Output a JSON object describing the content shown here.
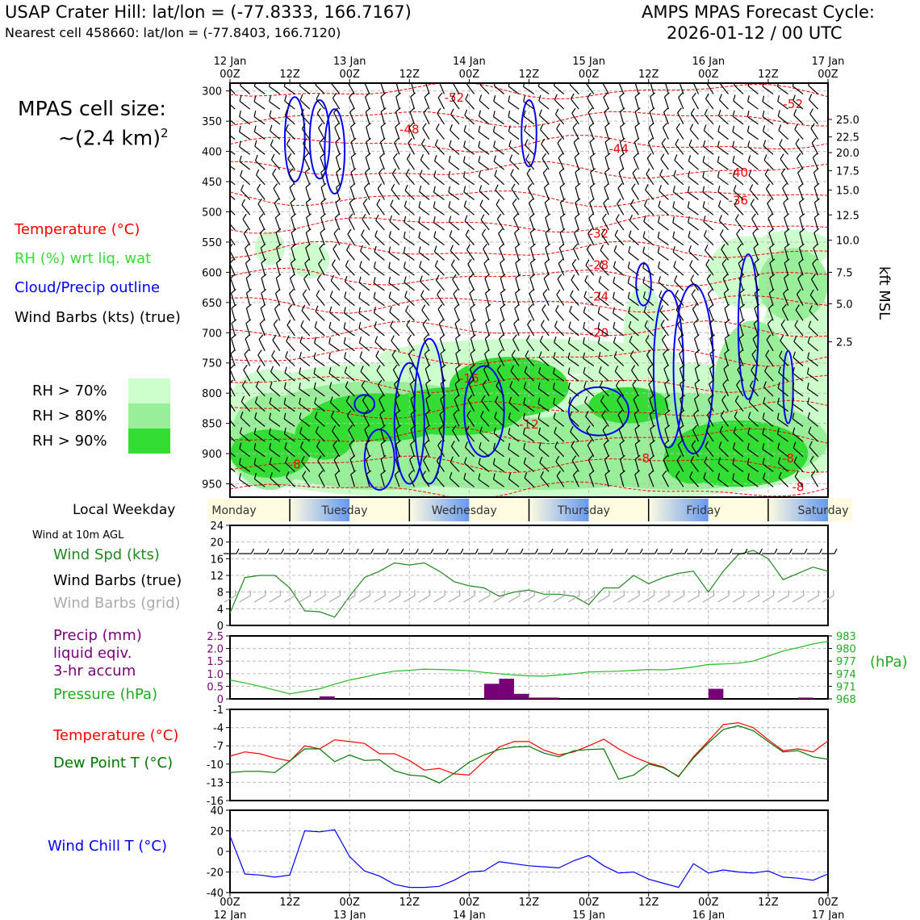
{
  "header": {
    "title_left": "USAP Crater Hill: lat/lon = (-77.8333, 166.7167)",
    "subtitle_left": "Nearest cell 458660: lat/lon = (-77.8403, 166.7120)",
    "title_right_1": "AMPS MPAS Forecast Cycle:",
    "title_right_2": "2026-01-12 / 00 UTC",
    "cell_size_1": "MPAS cell size:",
    "cell_size_2": "~(2.4 km)",
    "cell_size_exp": "2"
  },
  "legend": {
    "temperature": "Temperature (°C)",
    "rh": "RH (%) wrt liq. wat",
    "cloud": "Cloud/Precip outline",
    "wind": "Wind Barbs (kts) (true)",
    "rh70": "RH > 70%",
    "rh80": "RH > 80%",
    "rh90": "RH > 90%",
    "colors": {
      "temp": "#ff0000",
      "rh": "#33dd33",
      "cloud": "#0000ff",
      "rh70": "#ccffcc",
      "rh80": "#99ee99",
      "rh90": "#33dd33"
    }
  },
  "panels": {
    "weekday_label": "Local Weekday",
    "wind10_label": "Wind at 10m AGL",
    "wind_spd": "Wind Spd (kts)",
    "wind_barbs_true": "Wind Barbs (true)",
    "wind_barbs_grid": "Wind Barbs (grid)",
    "precip_1": "Precip (mm)",
    "precip_2": "liquid eqiv.",
    "precip_3": "3-hr accum",
    "pressure": "Pressure (hPa)",
    "hpa_unit": "(hPa)",
    "temp": "Temperature (°C)",
    "dew": "Dew Point T (°C)",
    "windchill": "Wind Chill T (°C)",
    "kft": "kft MSL"
  },
  "chart_data": {
    "type": "line",
    "time_axis": {
      "hours": [
        0,
        12,
        24,
        36,
        48,
        60,
        72,
        84,
        96,
        108,
        120
      ],
      "top_labels_1": [
        "12 Jan",
        "",
        "13 Jan",
        "",
        "14 Jan",
        "",
        "15 Jan",
        "",
        "16 Jan",
        "",
        "17 Jan"
      ],
      "top_labels_2": [
        "00Z",
        "12Z",
        "00Z",
        "12Z",
        "00Z",
        "12Z",
        "00Z",
        "12Z",
        "00Z",
        "12Z",
        "00Z"
      ],
      "bottom_labels_1": [
        "00Z",
        "12Z",
        "00Z",
        "12Z",
        "00Z",
        "12Z",
        "00Z",
        "12Z",
        "00Z",
        "12Z",
        "00Z"
      ],
      "bottom_labels_2": [
        "12 Jan",
        "",
        "13 Jan",
        "",
        "14 Jan",
        "",
        "15 Jan",
        "",
        "16 Jan",
        "",
        "17 Jan"
      ]
    },
    "weekdays": [
      "Monday",
      "Tuesday",
      "Wednesday",
      "Thursday",
      "Friday",
      "Saturday"
    ],
    "weekday_hours": [
      0,
      13,
      37,
      61,
      85,
      109
    ],
    "profile": {
      "pressure_ticks": [
        "300",
        "350",
        "400",
        "450",
        "500",
        "550",
        "600",
        "650",
        "700",
        "750",
        "800",
        "850",
        "900",
        "950"
      ],
      "pressure_values": [
        300,
        350,
        400,
        450,
        500,
        550,
        600,
        650,
        700,
        750,
        800,
        850,
        900,
        950
      ],
      "p_range": [
        287,
        972
      ],
      "kft_ticks": [
        "25.0",
        "22.5",
        "20.0",
        "17.5",
        "15.0",
        "12.5",
        "10.0",
        "7.5",
        "5.0",
        "2.5"
      ],
      "kft_pressure": [
        347,
        376,
        402,
        432,
        464,
        505,
        547,
        600,
        652,
        715,
        793
      ],
      "temp_labels": [
        "-52",
        "-52",
        "-48",
        "-44",
        "-40",
        "-36",
        "-32",
        "-28",
        "-24",
        "-20",
        "-16",
        "-12",
        "-8",
        "-8",
        "-8",
        "-8"
      ],
      "temp_label_pos": [
        [
          45,
          311
        ],
        [
          113,
          322
        ],
        [
          36,
          364
        ],
        [
          78,
          396
        ],
        [
          102,
          435
        ],
        [
          102,
          481
        ],
        [
          74,
          536
        ],
        [
          74,
          588
        ],
        [
          74,
          640
        ],
        [
          74,
          700
        ],
        [
          48,
          776
        ],
        [
          60,
          852
        ],
        [
          13,
          918
        ],
        [
          83,
          908
        ],
        [
          112,
          908
        ],
        [
          114,
          955
        ]
      ]
    },
    "wind_speed": {
      "x": [
        0,
        3,
        6,
        9,
        12,
        15,
        18,
        21,
        24,
        27,
        30,
        33,
        36,
        39,
        42,
        45,
        48,
        51,
        54,
        57,
        60,
        63,
        66,
        69,
        72,
        75,
        78,
        81,
        84,
        87,
        90,
        93,
        96,
        99,
        102,
        105,
        108,
        111,
        114,
        117,
        120
      ],
      "y": [
        3,
        11.5,
        12,
        12,
        9,
        3.5,
        3.3,
        2,
        7,
        11.5,
        13,
        15,
        14.5,
        15,
        13,
        10.5,
        9.5,
        9,
        7,
        8,
        8.5,
        7.5,
        7.5,
        7,
        5,
        9,
        9,
        12,
        10,
        11.5,
        12.5,
        13,
        8,
        13,
        17,
        18,
        16,
        11,
        12.5,
        14,
        13
      ],
      "ylim": [
        0,
        24
      ],
      "yticks": [
        "0",
        "4",
        "8",
        "12",
        "16",
        "20",
        "24"
      ],
      "color": "#228822"
    },
    "pressure": {
      "x": [
        0,
        3,
        6,
        9,
        12,
        15,
        18,
        21,
        24,
        27,
        30,
        33,
        36,
        39,
        42,
        45,
        48,
        51,
        54,
        57,
        60,
        63,
        66,
        69,
        72,
        75,
        78,
        81,
        84,
        87,
        90,
        93,
        96,
        99,
        102,
        105,
        108,
        111,
        114,
        117,
        120
      ],
      "y": [
        972.5,
        971.8,
        971,
        970.1,
        969.2,
        969.8,
        970.4,
        971.5,
        972.5,
        973.2,
        974,
        974.6,
        974.8,
        975.1,
        975,
        974.9,
        974.7,
        974.3,
        974,
        973.7,
        973.5,
        973.4,
        973.7,
        974,
        974.4,
        974.5,
        974.6,
        974.8,
        975,
        974.9,
        975.2,
        975.6,
        976.2,
        976.3,
        976.5,
        977,
        978.2,
        979.4,
        980.2,
        981.1,
        981.7
      ],
      "ylim": [
        968,
        983
      ],
      "yticks": [
        "968",
        "971",
        "974",
        "977",
        "980",
        "983"
      ],
      "color": "#22bb22"
    },
    "precip": {
      "bars": [
        [
          18,
          0.1
        ],
        [
          51,
          0.6
        ],
        [
          54,
          0.8
        ],
        [
          57,
          0.2
        ],
        [
          60,
          0.05
        ],
        [
          63,
          0.05
        ],
        [
          96,
          0.4
        ],
        [
          114,
          0.05
        ]
      ],
      "ylim": [
        0,
        2.5
      ],
      "yticks": [
        "0",
        "0.5",
        "1.0",
        "1.5",
        "2.0",
        "2.5"
      ],
      "color": "#770077"
    },
    "temperature": {
      "x": [
        0,
        3,
        6,
        9,
        12,
        15,
        18,
        21,
        24,
        27,
        30,
        33,
        36,
        39,
        42,
        45,
        48,
        51,
        54,
        57,
        60,
        63,
        66,
        69,
        72,
        75,
        78,
        81,
        84,
        87,
        90,
        93,
        96,
        99,
        102,
        105,
        108,
        111,
        114,
        117,
        120
      ],
      "y": [
        -8.7,
        -8,
        -8.3,
        -9,
        -9.5,
        -7,
        -7.5,
        -6,
        -6.3,
        -6.6,
        -8.3,
        -8.3,
        -9.4,
        -11,
        -10.7,
        -11.6,
        -11.8,
        -9.5,
        -7.2,
        -6.3,
        -6.3,
        -7.7,
        -8.5,
        -8,
        -7,
        -5.9,
        -7.5,
        -8.8,
        -9.8,
        -10.5,
        -12.1,
        -8.8,
        -6.2,
        -3.5,
        -3.2,
        -4,
        -6,
        -7.8,
        -7.5,
        -8,
        -6.2
      ],
      "ylim": [
        -16,
        -1
      ],
      "yticks": [
        "-16",
        "-13",
        "-10",
        "-7",
        "-4",
        "-1"
      ],
      "color": "#ff0000"
    },
    "dewpoint": {
      "x": [
        0,
        3,
        6,
        9,
        12,
        15,
        18,
        21,
        24,
        27,
        30,
        33,
        36,
        39,
        42,
        45,
        48,
        51,
        54,
        57,
        60,
        63,
        66,
        69,
        72,
        75,
        78,
        81,
        84,
        87,
        90,
        93,
        96,
        99,
        102,
        105,
        108,
        111,
        114,
        117,
        120
      ],
      "y": [
        -11.4,
        -11.2,
        -11.2,
        -11.4,
        -9.5,
        -7.5,
        -7.5,
        -9.6,
        -8.5,
        -9.4,
        -9.3,
        -11.1,
        -11.8,
        -12,
        -13.1,
        -11.5,
        -9.7,
        -8.5,
        -7.6,
        -7.2,
        -7.1,
        -8.2,
        -8.8,
        -7.8,
        -7.6,
        -7.5,
        -12.5,
        -11.8,
        -10,
        -10.6,
        -12,
        -9,
        -6.5,
        -4.3,
        -3.7,
        -4.5,
        -6.3,
        -8,
        -7.8,
        -8.8,
        -9.2
      ],
      "color": "#007700"
    },
    "wind_chill": {
      "x": [
        0,
        3,
        6,
        9,
        12,
        15,
        18,
        21,
        24,
        27,
        30,
        33,
        36,
        39,
        42,
        45,
        48,
        51,
        54,
        57,
        60,
        63,
        66,
        69,
        72,
        75,
        78,
        81,
        84,
        87,
        90,
        93,
        96,
        99,
        102,
        105,
        108,
        111,
        114,
        117,
        120
      ],
      "y": [
        15,
        -22,
        -23,
        -25,
        -23,
        20,
        19,
        21,
        -5,
        -19,
        -24,
        -32,
        -35,
        -35,
        -34,
        -28,
        -20,
        -19,
        -10,
        -12,
        -14,
        -15,
        -16,
        -9,
        -4,
        -14,
        -21,
        -20,
        -27,
        -31,
        -35,
        -12,
        -21,
        -18,
        -20,
        -21,
        -19,
        -25,
        -26,
        -28,
        -22
      ],
      "ylim": [
        -40,
        40
      ],
      "yticks": [
        "-40",
        "-20",
        "0",
        "20",
        "40"
      ],
      "color": "#0000ff"
    }
  }
}
